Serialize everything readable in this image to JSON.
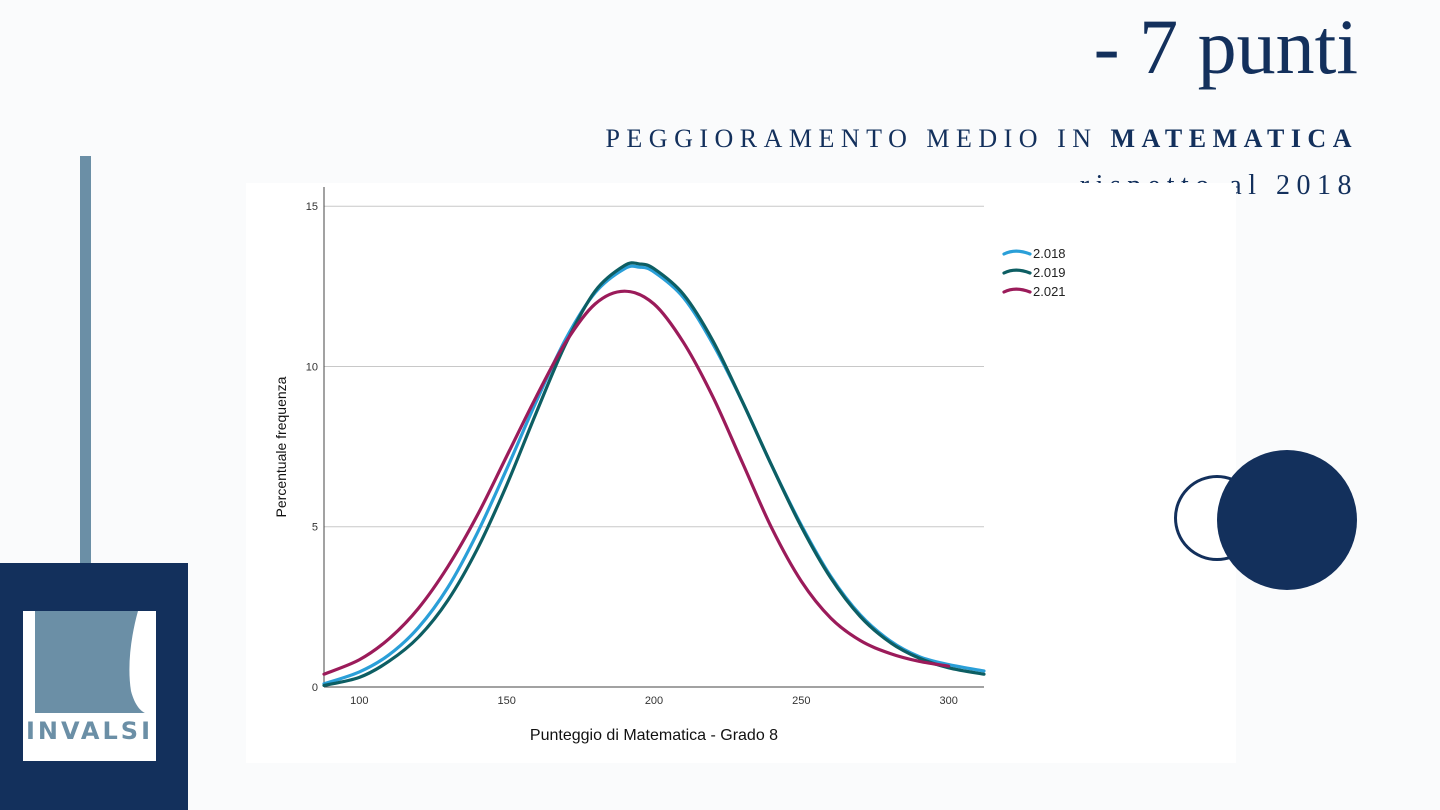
{
  "slide": {
    "headline": "- 7 punti",
    "subtitle_prefix": "PEGGIORAMENTO MEDIO IN ",
    "subtitle_bold": "MATEMATICA",
    "subtitle_line2": "rispetto al 2018",
    "logo_text": "INVALSI"
  },
  "colors": {
    "navy": "#13305c",
    "steel": "#6b8fa6"
  },
  "chart_data": {
    "type": "line",
    "xlabel": "Punteggio di Matematica - Grado 8",
    "ylabel": "Percentuale frequenza",
    "xlim": [
      88,
      312
    ],
    "ylim": [
      0,
      15.6
    ],
    "x_ticks": [
      100,
      150,
      200,
      250,
      300
    ],
    "y_ticks": [
      0,
      5,
      10,
      15
    ],
    "grid": true,
    "legend_position": "right",
    "series": [
      {
        "name": "2.018",
        "color": "#2a9fd8",
        "points": [
          [
            88,
            0.1
          ],
          [
            100,
            0.47
          ],
          [
            110,
            1.0
          ],
          [
            120,
            1.85
          ],
          [
            130,
            3.1
          ],
          [
            140,
            4.8
          ],
          [
            150,
            6.8
          ],
          [
            160,
            8.9
          ],
          [
            170,
            10.85
          ],
          [
            180,
            12.3
          ],
          [
            190,
            13.05
          ],
          [
            195,
            13.1
          ],
          [
            200,
            12.95
          ],
          [
            210,
            12.15
          ],
          [
            220,
            10.7
          ],
          [
            230,
            8.9
          ],
          [
            240,
            6.9
          ],
          [
            250,
            5.05
          ],
          [
            260,
            3.45
          ],
          [
            270,
            2.25
          ],
          [
            280,
            1.45
          ],
          [
            290,
            0.95
          ],
          [
            300,
            0.7
          ],
          [
            312,
            0.5
          ]
        ]
      },
      {
        "name": "2.019",
        "color": "#0d5e63",
        "points": [
          [
            88,
            0.05
          ],
          [
            100,
            0.3
          ],
          [
            110,
            0.8
          ],
          [
            120,
            1.55
          ],
          [
            130,
            2.7
          ],
          [
            140,
            4.3
          ],
          [
            150,
            6.3
          ],
          [
            160,
            8.55
          ],
          [
            170,
            10.7
          ],
          [
            180,
            12.35
          ],
          [
            190,
            13.15
          ],
          [
            195,
            13.2
          ],
          [
            200,
            13.05
          ],
          [
            210,
            12.25
          ],
          [
            220,
            10.8
          ],
          [
            230,
            8.9
          ],
          [
            240,
            6.9
          ],
          [
            250,
            5.0
          ],
          [
            260,
            3.4
          ],
          [
            270,
            2.2
          ],
          [
            280,
            1.4
          ],
          [
            290,
            0.9
          ],
          [
            300,
            0.6
          ],
          [
            312,
            0.4
          ]
        ]
      },
      {
        "name": "2.021",
        "color": "#9b1b5a",
        "points": [
          [
            88,
            0.4
          ],
          [
            100,
            0.85
          ],
          [
            110,
            1.5
          ],
          [
            120,
            2.45
          ],
          [
            130,
            3.75
          ],
          [
            140,
            5.35
          ],
          [
            150,
            7.2
          ],
          [
            160,
            9.05
          ],
          [
            170,
            10.75
          ],
          [
            180,
            11.95
          ],
          [
            190,
            12.35
          ],
          [
            200,
            11.95
          ],
          [
            210,
            10.75
          ],
          [
            220,
            9.05
          ],
          [
            230,
            7.0
          ],
          [
            240,
            4.95
          ],
          [
            250,
            3.3
          ],
          [
            260,
            2.15
          ],
          [
            270,
            1.45
          ],
          [
            280,
            1.05
          ],
          [
            290,
            0.8
          ],
          [
            300,
            0.65
          ]
        ]
      }
    ]
  }
}
